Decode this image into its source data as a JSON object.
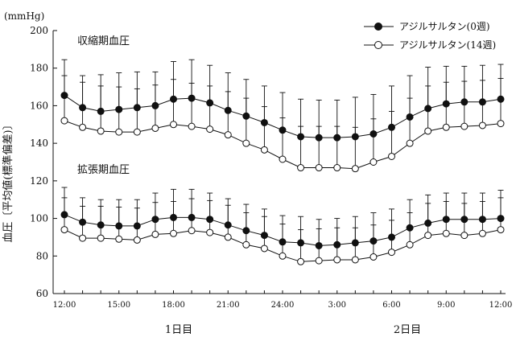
{
  "chart_data": {
    "type": "line",
    "y_unit": "(mmHg)",
    "ylabel": "血圧〔平均値(標準偏差)〕",
    "ylim": [
      60,
      200
    ],
    "y_ticks": [
      "200",
      "180",
      "160",
      "140",
      "120",
      "100",
      "80",
      "60"
    ],
    "x_tick_labels": [
      "12:00",
      "15:00",
      "18:00",
      "21:00",
      "24:00",
      "3:00",
      "6:00",
      "9:00",
      "12:00"
    ],
    "day_labels": [
      "1日目",
      "2日目"
    ],
    "group_labels": [
      "収縮期血圧",
      "拡張期血圧"
    ],
    "grid": false,
    "legend_position": "top-right",
    "x_hours": [
      12,
      13,
      14,
      15,
      16,
      17,
      18,
      19,
      20,
      21,
      22,
      23,
      24,
      25,
      26,
      27,
      28,
      29,
      30,
      31,
      32,
      33,
      34,
      35,
      36
    ],
    "series": [
      {
        "name": "アジルサルタン(0週)",
        "group": "収縮期血圧",
        "marker": "filled",
        "values": [
          165.5,
          159,
          157,
          158,
          159,
          160,
          163.5,
          164,
          161.5,
          157.5,
          154.5,
          151,
          147,
          143.5,
          143,
          143,
          143.5,
          145,
          148.5,
          154,
          158.5,
          161,
          162,
          162,
          163.5
        ],
        "sd": [
          19,
          17,
          19.5,
          19.5,
          19,
          18,
          20,
          20.5,
          20,
          20,
          19.5,
          19.5,
          20,
          20,
          20,
          20,
          21,
          21,
          22,
          22,
          22,
          20,
          19,
          19.5,
          18.5
        ]
      },
      {
        "name": "アジルサルタン(14週)",
        "group": "収縮期血圧",
        "marker": "open",
        "values": [
          152,
          148.5,
          146.5,
          146,
          146,
          148,
          150,
          149,
          147.5,
          144.5,
          140,
          136.5,
          131.5,
          127,
          127,
          127,
          126.5,
          130,
          133,
          140,
          146.5,
          148.5,
          149,
          149.5,
          150.5
        ],
        "sd": [
          24,
          24,
          24,
          24,
          23,
          23,
          24,
          23,
          23,
          23,
          24,
          23,
          22,
          22,
          22,
          22,
          22,
          23,
          24,
          24,
          24,
          24,
          24,
          24,
          24
        ]
      },
      {
        "name": "アジルサルタン(0週)",
        "group": "拡張期血圧",
        "marker": "filled",
        "values": [
          102,
          98,
          96.5,
          96,
          96,
          99.5,
          100.5,
          100.5,
          99.5,
          96.5,
          93.5,
          91,
          87.5,
          87,
          85.5,
          86,
          87,
          88,
          90,
          95,
          97.5,
          99.5,
          99.5,
          99.5,
          100
        ],
        "sd": [
          14.5,
          13,
          13.5,
          14,
          14,
          14,
          15,
          15,
          14,
          14,
          14,
          14,
          14,
          14,
          14,
          14,
          14,
          15,
          15,
          15,
          15,
          14,
          14,
          14,
          15
        ]
      },
      {
        "name": "アジルサルタン(14週)",
        "group": "拡張期血圧",
        "marker": "open",
        "values": [
          94,
          89.5,
          89.5,
          89,
          88.5,
          91.5,
          92,
          93.5,
          92.5,
          90,
          86,
          84,
          80,
          77,
          77.5,
          78,
          78,
          79.5,
          82,
          86,
          91,
          92,
          91,
          92,
          94
        ],
        "sd": [
          17,
          17,
          17,
          17,
          17,
          17,
          17,
          17,
          17,
          17,
          17,
          17,
          17,
          17,
          17,
          17,
          17,
          17,
          17,
          17,
          17,
          17,
          17,
          17,
          17
        ]
      }
    ]
  }
}
